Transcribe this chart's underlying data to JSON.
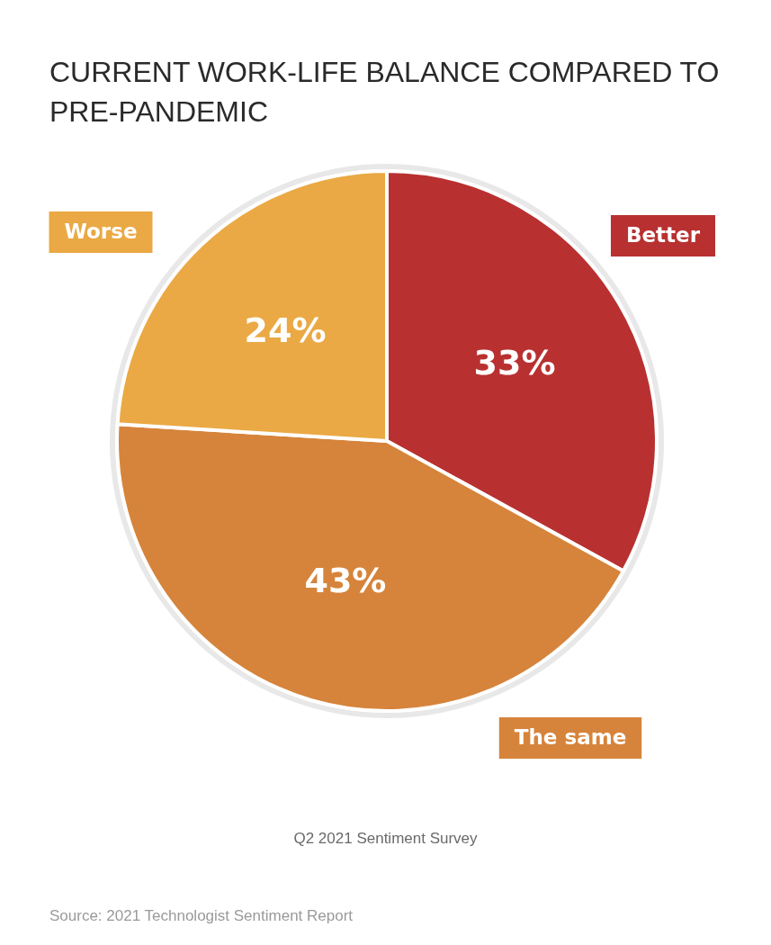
{
  "chart_data": {
    "type": "pie",
    "title": "CURRENT WORK-LIFE BALANCE COMPARED TO PRE-PANDEMIC",
    "categories": [
      "Better",
      "The same",
      "Worse"
    ],
    "values": [
      33,
      43,
      24
    ],
    "colors": [
      "#b83130",
      "#d6843b",
      "#eaa944"
    ],
    "value_labels": [
      "33%",
      "43%",
      "24%"
    ],
    "legend": false,
    "annotations": [
      "Q2 2021 Sentiment Survey",
      "Source: 2021 Technologist Sentiment Report"
    ]
  }
}
